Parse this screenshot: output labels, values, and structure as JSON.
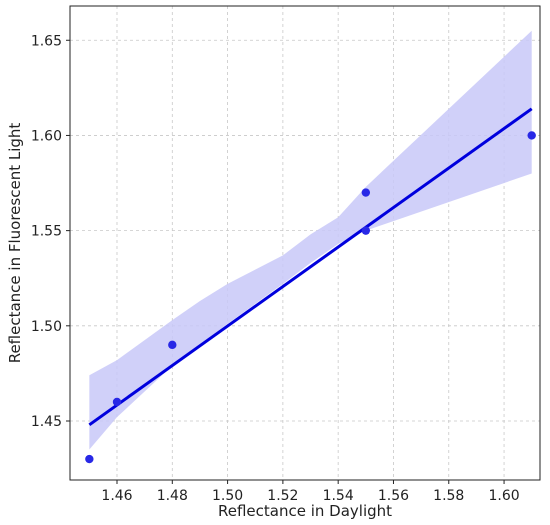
{
  "chart_data": {
    "type": "scatter",
    "title": "",
    "xlabel": "Reflectance in Daylight",
    "ylabel": "Reflectance in Fluorescent Light",
    "xlim": [
      1.443,
      1.613
    ],
    "ylim": [
      1.419,
      1.668
    ],
    "x_ticks": [
      "1.46",
      "1.48",
      "1.50",
      "1.52",
      "1.54",
      "1.56",
      "1.58",
      "1.60"
    ],
    "y_ticks": [
      "1.45",
      "1.50",
      "1.55",
      "1.60",
      "1.65"
    ],
    "grid": true,
    "points": [
      {
        "x": 1.45,
        "y": 1.43
      },
      {
        "x": 1.46,
        "y": 1.46
      },
      {
        "x": 1.48,
        "y": 1.49
      },
      {
        "x": 1.55,
        "y": 1.57
      },
      {
        "x": 1.55,
        "y": 1.55
      },
      {
        "x": 1.61,
        "y": 1.6
      }
    ],
    "regression_line": {
      "x": [
        1.45,
        1.61
      ],
      "y": [
        1.448,
        1.614
      ]
    },
    "confidence_band": {
      "x": [
        1.45,
        1.46,
        1.48,
        1.49,
        1.5,
        1.52,
        1.53,
        1.54,
        1.55,
        1.61
      ],
      "lower": [
        1.435,
        1.452,
        1.479,
        1.49,
        1.501,
        1.522,
        1.533,
        1.543,
        1.55,
        1.58
      ],
      "upper": [
        1.474,
        1.482,
        1.503,
        1.513,
        1.522,
        1.537,
        1.548,
        1.557,
        1.573,
        1.655
      ]
    },
    "colors": {
      "points": "#2828e6",
      "line": "#0000dd",
      "band": "#c8c8f8"
    }
  }
}
